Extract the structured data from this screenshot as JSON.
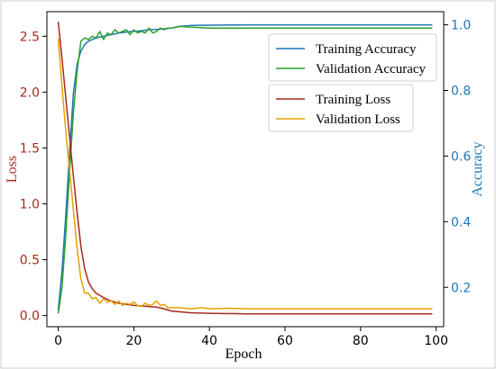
{
  "chart_data": {
    "type": "line",
    "title": "",
    "xlabel": "Epoch",
    "ylabel_left": "Loss",
    "ylabel_right": "Accuracy",
    "xlim": [
      -3,
      102
    ],
    "ylim_left": [
      -0.1,
      2.72
    ],
    "ylim_right": [
      0.08,
      1.04
    ],
    "x_ticks": [
      0,
      20,
      40,
      60,
      80,
      100
    ],
    "y_left_ticks": [
      0.0,
      0.5,
      1.0,
      1.5,
      2.0,
      2.5
    ],
    "y_right_ticks": [
      0.2,
      0.4,
      0.6,
      0.8,
      1.0
    ],
    "x_tick_labels": [
      "0",
      "20",
      "40",
      "60",
      "80",
      "100"
    ],
    "y_left_tick_labels": [
      "0.0",
      "0.5",
      "1.0",
      "1.5",
      "2.0",
      "2.5"
    ],
    "y_right_tick_labels": [
      "0.2",
      "0.4",
      "0.6",
      "0.8",
      "1.0"
    ],
    "grid": false,
    "legends": [
      {
        "placement": "upper-right",
        "entries": [
          "Training Accuracy",
          "Validation Accuracy"
        ]
      },
      {
        "placement": "upper-right-below",
        "entries": [
          "Training Loss",
          "Validation Loss"
        ]
      }
    ],
    "series": [
      {
        "name": "Training Accuracy",
        "axis": "right",
        "color": "#1f77b4",
        "x": [
          0,
          1,
          2,
          3,
          4,
          5,
          6,
          7,
          8,
          9,
          10,
          12,
          14,
          16,
          18,
          20,
          22,
          24,
          26,
          28,
          30,
          32,
          35,
          40,
          50,
          60,
          70,
          80,
          90,
          99
        ],
        "y": [
          0.13,
          0.25,
          0.42,
          0.61,
          0.79,
          0.88,
          0.92,
          0.94,
          0.95,
          0.955,
          0.96,
          0.965,
          0.97,
          0.975,
          0.978,
          0.98,
          0.982,
          0.985,
          0.986,
          0.988,
          0.99,
          0.995,
          0.998,
          0.999,
          1.0,
          1.0,
          1.0,
          1.0,
          1.0,
          1.0
        ]
      },
      {
        "name": "Validation Accuracy",
        "axis": "right",
        "color": "#2ca02c",
        "x": [
          0,
          1,
          2,
          3,
          4,
          5,
          6,
          7,
          8,
          9,
          10,
          11,
          12,
          13,
          14,
          15,
          16,
          17,
          18,
          19,
          20,
          21,
          22,
          23,
          24,
          25,
          26,
          27,
          28,
          29,
          30,
          32,
          35,
          40,
          50,
          60,
          70,
          80,
          90,
          99
        ],
        "y": [
          0.12,
          0.2,
          0.36,
          0.55,
          0.73,
          0.86,
          0.95,
          0.96,
          0.955,
          0.965,
          0.96,
          0.98,
          0.955,
          0.975,
          0.97,
          0.985,
          0.975,
          0.98,
          0.985,
          0.97,
          0.985,
          0.975,
          0.98,
          0.975,
          0.99,
          0.975,
          0.98,
          0.99,
          0.985,
          0.99,
          0.99,
          0.995,
          0.993,
          0.99,
          0.99,
          0.99,
          0.99,
          0.99,
          0.99,
          0.99
        ]
      },
      {
        "name": "Training Loss",
        "axis": "left",
        "color": "#a52a1e",
        "x": [
          0,
          1,
          2,
          3,
          4,
          5,
          6,
          7,
          8,
          9,
          10,
          12,
          14,
          16,
          18,
          20,
          22,
          24,
          26,
          28,
          30,
          35,
          40,
          50,
          60,
          70,
          80,
          90,
          99
        ],
        "y": [
          2.63,
          2.3,
          1.95,
          1.6,
          1.25,
          0.92,
          0.62,
          0.42,
          0.3,
          0.24,
          0.2,
          0.16,
          0.13,
          0.11,
          0.1,
          0.09,
          0.085,
          0.08,
          0.075,
          0.06,
          0.04,
          0.025,
          0.02,
          0.015,
          0.015,
          0.015,
          0.015,
          0.015,
          0.015
        ]
      },
      {
        "name": "Validation Loss",
        "axis": "left",
        "color": "#e6a000",
        "x": [
          0,
          1,
          2,
          3,
          4,
          5,
          6,
          7,
          8,
          9,
          10,
          11,
          12,
          13,
          14,
          15,
          16,
          17,
          18,
          19,
          20,
          21,
          22,
          23,
          24,
          25,
          26,
          27,
          28,
          29,
          30,
          32,
          35,
          38,
          40,
          45,
          50,
          60,
          70,
          80,
          90,
          99
        ],
        "y": [
          2.48,
          2.05,
          1.65,
          1.3,
          0.95,
          0.6,
          0.33,
          0.2,
          0.2,
          0.15,
          0.16,
          0.11,
          0.15,
          0.12,
          0.13,
          0.1,
          0.13,
          0.09,
          0.11,
          0.1,
          0.12,
          0.09,
          0.08,
          0.11,
          0.09,
          0.1,
          0.13,
          0.09,
          0.1,
          0.07,
          0.07,
          0.07,
          0.06,
          0.07,
          0.06,
          0.065,
          0.06,
          0.06,
          0.06,
          0.06,
          0.06,
          0.06
        ]
      }
    ]
  }
}
